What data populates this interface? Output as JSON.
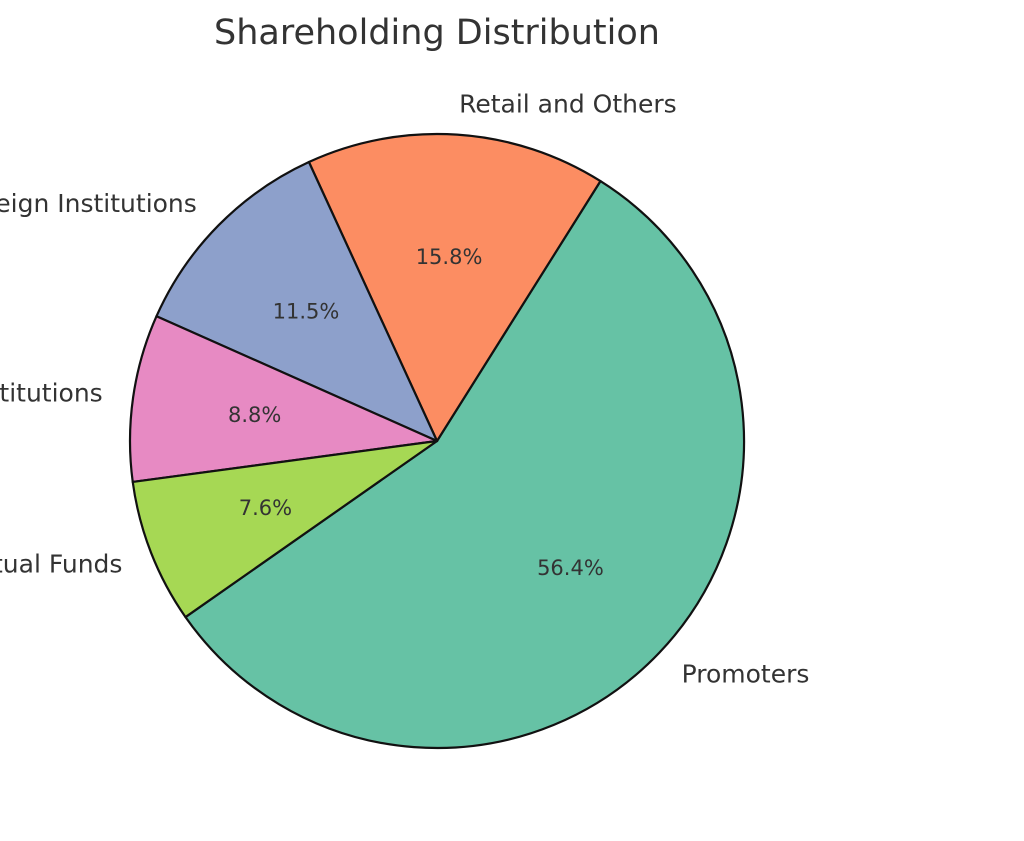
{
  "chart_data": {
    "type": "pie",
    "title": "Shareholding Distribution",
    "start_angle_deg": 215,
    "direction": "counterclockwise",
    "slices": [
      {
        "label": "Promoters",
        "value": 56.4,
        "pct_label": "56.4%",
        "color": "#66c2a5"
      },
      {
        "label": "Retail and Others",
        "value": 15.8,
        "pct_label": "15.8%",
        "color": "#fc8d62"
      },
      {
        "label": "Foreign Institutions",
        "value": 11.5,
        "pct_label": "11.5%",
        "color": "#8da0cb"
      },
      {
        "label": "Other Domestic Institutions",
        "value": 8.8,
        "pct_label": "8.8%",
        "color": "#e78ac3"
      },
      {
        "label": "Mutual Funds",
        "value": 7.6,
        "pct_label": "7.6%",
        "color": "#a6d854"
      }
    ],
    "edge_color": "#000000",
    "text_color": "#333333"
  }
}
